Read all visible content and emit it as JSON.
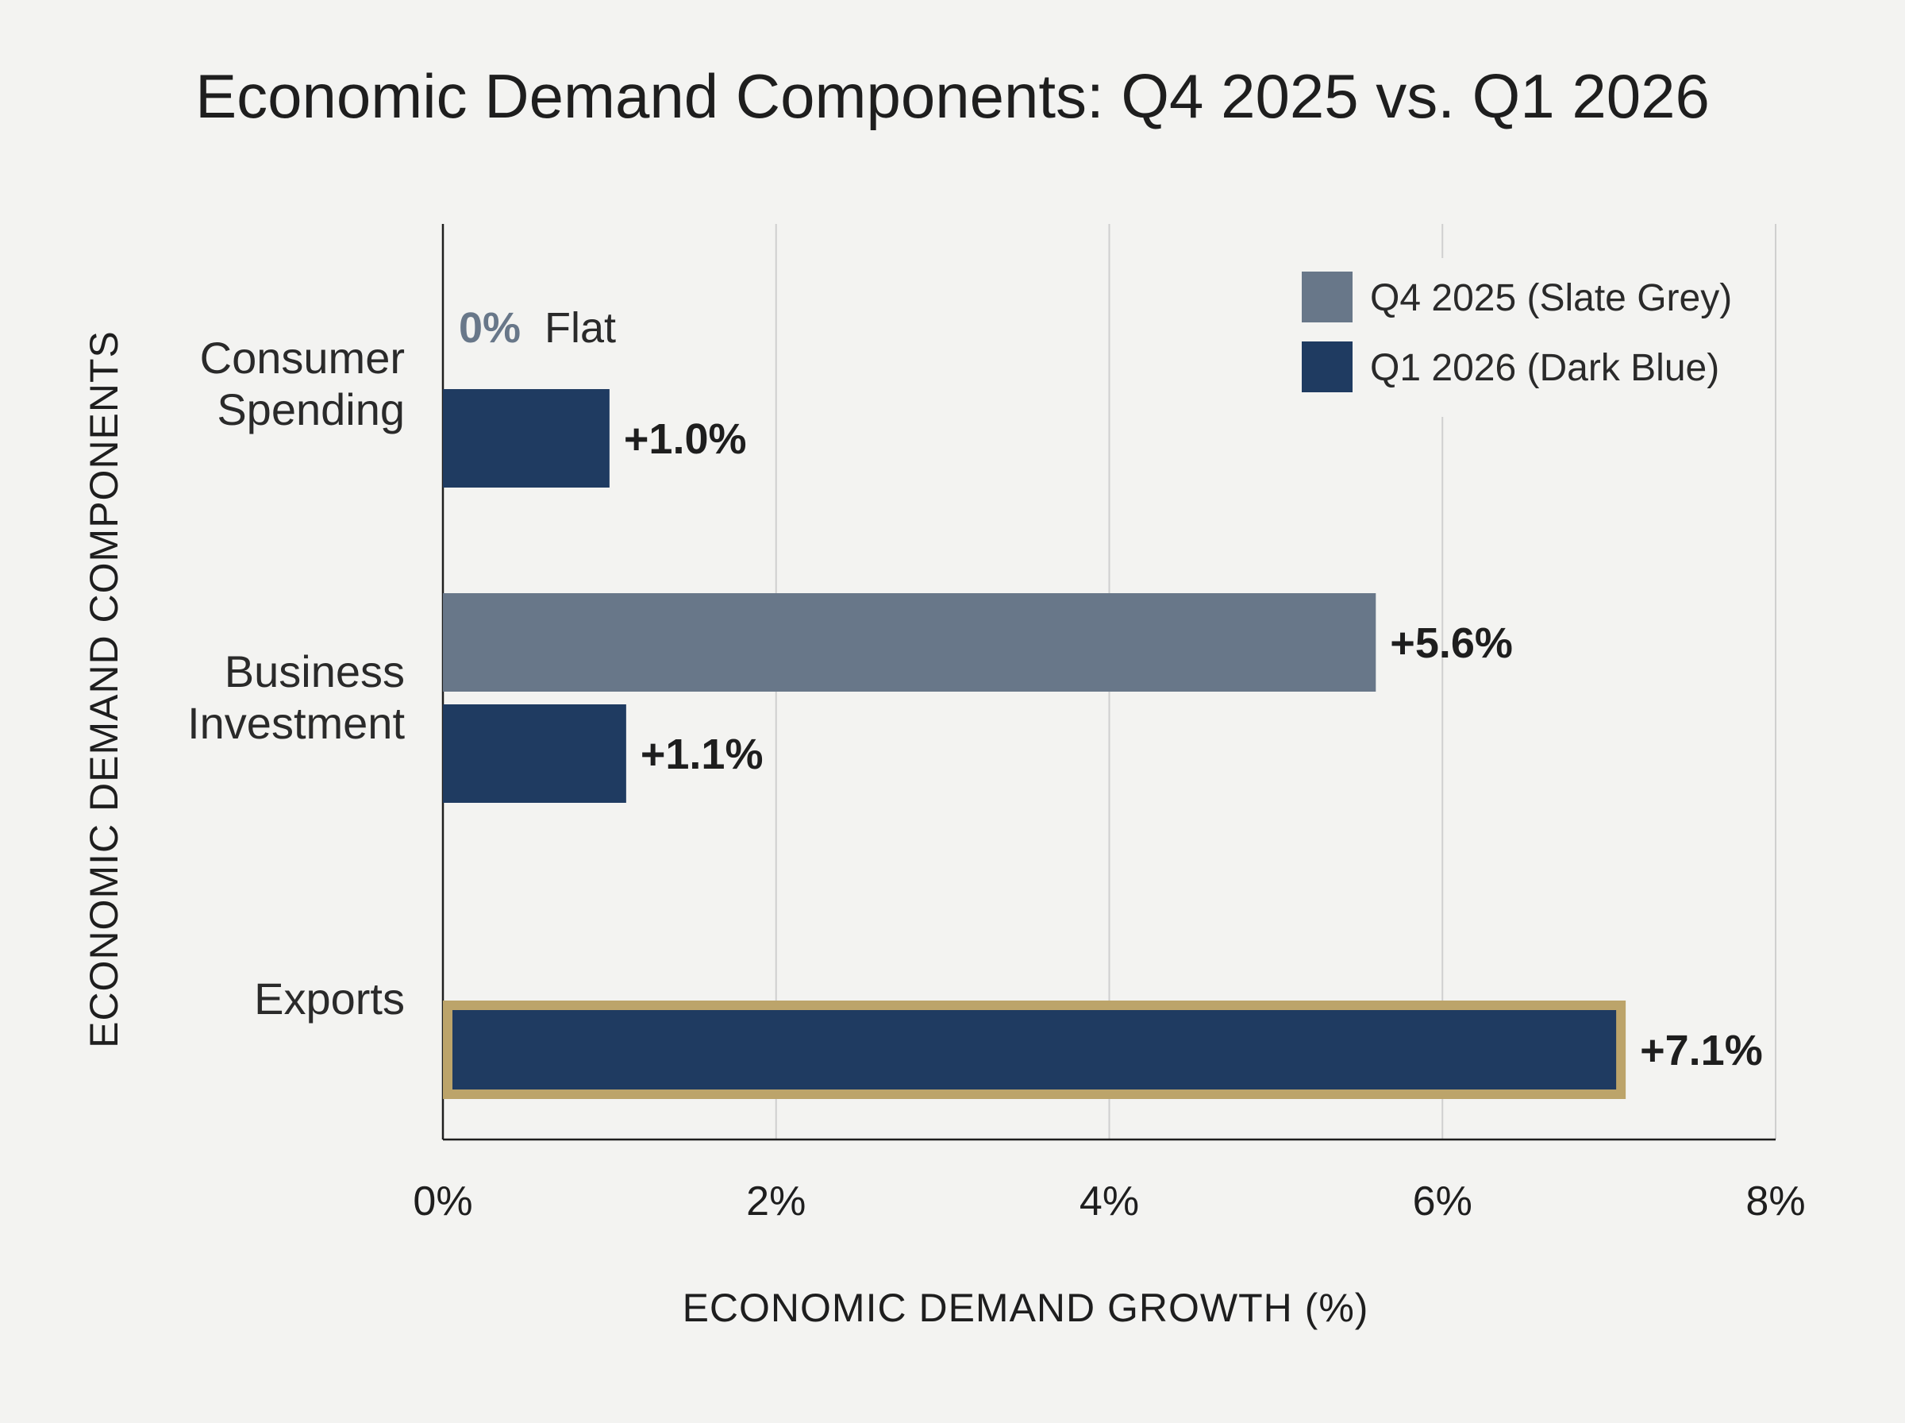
{
  "chart_data": {
    "type": "bar",
    "orientation": "horizontal",
    "title": "Economic Demand Components: Q4 2025 vs. Q1 2026",
    "xlabel": "ECONOMIC DEMAND GROWTH (%)",
    "ylabel": "ECONOMIC DEMAND COMPONENTS",
    "categories": [
      "Consumer Spending",
      "Business Investment",
      "Exports"
    ],
    "category_lines": [
      [
        "Consumer",
        "Spending"
      ],
      [
        "Business",
        "Investment"
      ],
      [
        "Exports"
      ]
    ],
    "series": [
      {
        "name": "Q4 2025 (Slate Grey)",
        "color": "#687789",
        "values": [
          0,
          5.6,
          null
        ],
        "labels": [
          "0%",
          "+5.6%",
          null
        ]
      },
      {
        "name": "Q1 2026 (Dark Blue)",
        "color": "#1f3b61",
        "values": [
          1.0,
          1.1,
          7.1
        ],
        "labels": [
          "+1.0%",
          "+1.1%",
          "+7.1%"
        ]
      }
    ],
    "flat_annotation": "Flat",
    "highlight": {
      "category": "Exports",
      "color": "#bca46a"
    },
    "xlim": [
      0,
      8
    ],
    "xticks": [
      0,
      2,
      4,
      6,
      8
    ],
    "xtick_labels": [
      "0%",
      "2%",
      "4%",
      "6%",
      "8%"
    ],
    "grid": "vertical",
    "legend_position": "top-right"
  }
}
